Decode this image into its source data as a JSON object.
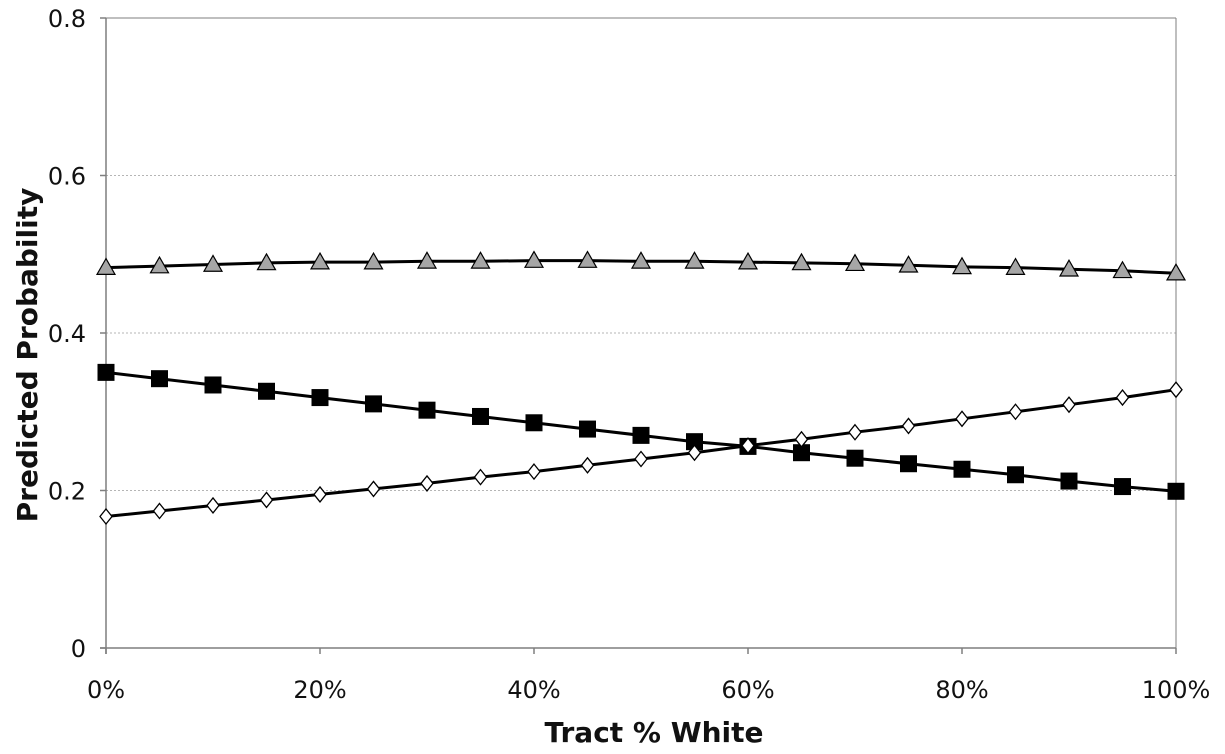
{
  "chart_data": {
    "type": "line",
    "title": "",
    "xlabel": "Tract % White",
    "ylabel": "Predicted Probability",
    "xlim": [
      0,
      100
    ],
    "ylim": [
      0,
      0.8
    ],
    "x_ticks": [
      0,
      20,
      40,
      60,
      80,
      100
    ],
    "x_tick_labels": [
      "0%",
      "20%",
      "40%",
      "60%",
      "80%",
      "100%"
    ],
    "y_ticks": [
      0,
      0.2,
      0.4,
      0.6,
      0.8
    ],
    "y_tick_labels": [
      "0",
      "0.2",
      "0.4",
      "0.6",
      "0.8"
    ],
    "grid": true,
    "legend": "none",
    "x": [
      0,
      5,
      10,
      15,
      20,
      25,
      30,
      35,
      40,
      45,
      50,
      55,
      60,
      65,
      70,
      75,
      80,
      85,
      90,
      95,
      100
    ],
    "series": [
      {
        "marker": "triangle",
        "color": "#a6a6a6",
        "values": [
          0.483,
          0.485,
          0.487,
          0.489,
          0.49,
          0.49,
          0.491,
          0.491,
          0.492,
          0.492,
          0.491,
          0.491,
          0.49,
          0.489,
          0.488,
          0.486,
          0.484,
          0.483,
          0.481,
          0.479,
          0.476
        ]
      },
      {
        "marker": "square",
        "color": "#000000",
        "values": [
          0.35,
          0.342,
          0.334,
          0.326,
          0.318,
          0.31,
          0.302,
          0.294,
          0.286,
          0.278,
          0.27,
          0.262,
          0.256,
          0.248,
          0.241,
          0.234,
          0.227,
          0.22,
          0.212,
          0.205,
          0.199
        ]
      },
      {
        "marker": "diamond",
        "color": "#ffffff",
        "values": [
          0.167,
          0.174,
          0.181,
          0.188,
          0.195,
          0.202,
          0.209,
          0.217,
          0.224,
          0.232,
          0.24,
          0.248,
          0.257,
          0.265,
          0.274,
          0.282,
          0.291,
          0.3,
          0.309,
          0.318,
          0.328
        ]
      }
    ]
  }
}
